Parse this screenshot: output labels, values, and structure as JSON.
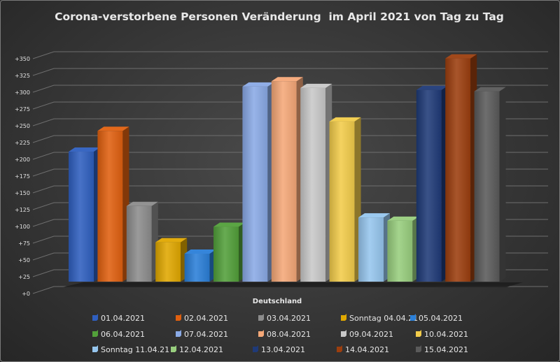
{
  "chart_data": {
    "type": "bar",
    "title": "Corona-verstorbene Personen Veränderung  im April 2021 von Tag zu Tag",
    "categories": [
      "Deutschland"
    ],
    "xlabel": "",
    "ylabel": "",
    "ylim": [
      0,
      350
    ],
    "yticks": [
      "+0",
      "+25",
      "+50",
      "+75",
      "+100",
      "+125",
      "+150",
      "+175",
      "+200",
      "+225",
      "+250",
      "+275",
      "+300",
      "+325",
      "+350"
    ],
    "grid": true,
    "legend_position": "bottom",
    "series": [
      {
        "name": "01.04.2021",
        "values": [
          201
        ],
        "color": "#2f5fbf"
      },
      {
        "name": "02.04.2021",
        "values": [
          232
        ],
        "color": "#e0600f"
      },
      {
        "name": "03.04.2021",
        "values": [
          120
        ],
        "color": "#8c8c8c"
      },
      {
        "name": "Sonntag 04.04.21",
        "values": [
          66
        ],
        "color": "#e0a800"
      },
      {
        "name": "05.04.2021",
        "values": [
          49
        ],
        "color": "#2a7fd8"
      },
      {
        "name": "06.04.2021",
        "values": [
          89
        ],
        "color": "#52a03a"
      },
      {
        "name": "07.04.2021",
        "values": [
          298
        ],
        "color": "#8aaae6"
      },
      {
        "name": "08.04.2021",
        "values": [
          306
        ],
        "color": "#f5a878"
      },
      {
        "name": "09.04.2021",
        "values": [
          296
        ],
        "color": "#c8c8c8"
      },
      {
        "name": "10.04.2021",
        "values": [
          246
        ],
        "color": "#f2cc4a"
      },
      {
        "name": "Sonntag 11.04.21",
        "values": [
          103
        ],
        "color": "#96c6ee"
      },
      {
        "name": "12.04.2021",
        "values": [
          98
        ],
        "color": "#98ce7e"
      },
      {
        "name": "13.04.2021",
        "values": [
          293
        ],
        "color": "#1f3a78"
      },
      {
        "name": "14.04.2021",
        "values": [
          340
        ],
        "color": "#9c3e0e"
      },
      {
        "name": "15.04.2021",
        "values": [
          291
        ],
        "color": "#5a5a5a"
      }
    ]
  }
}
